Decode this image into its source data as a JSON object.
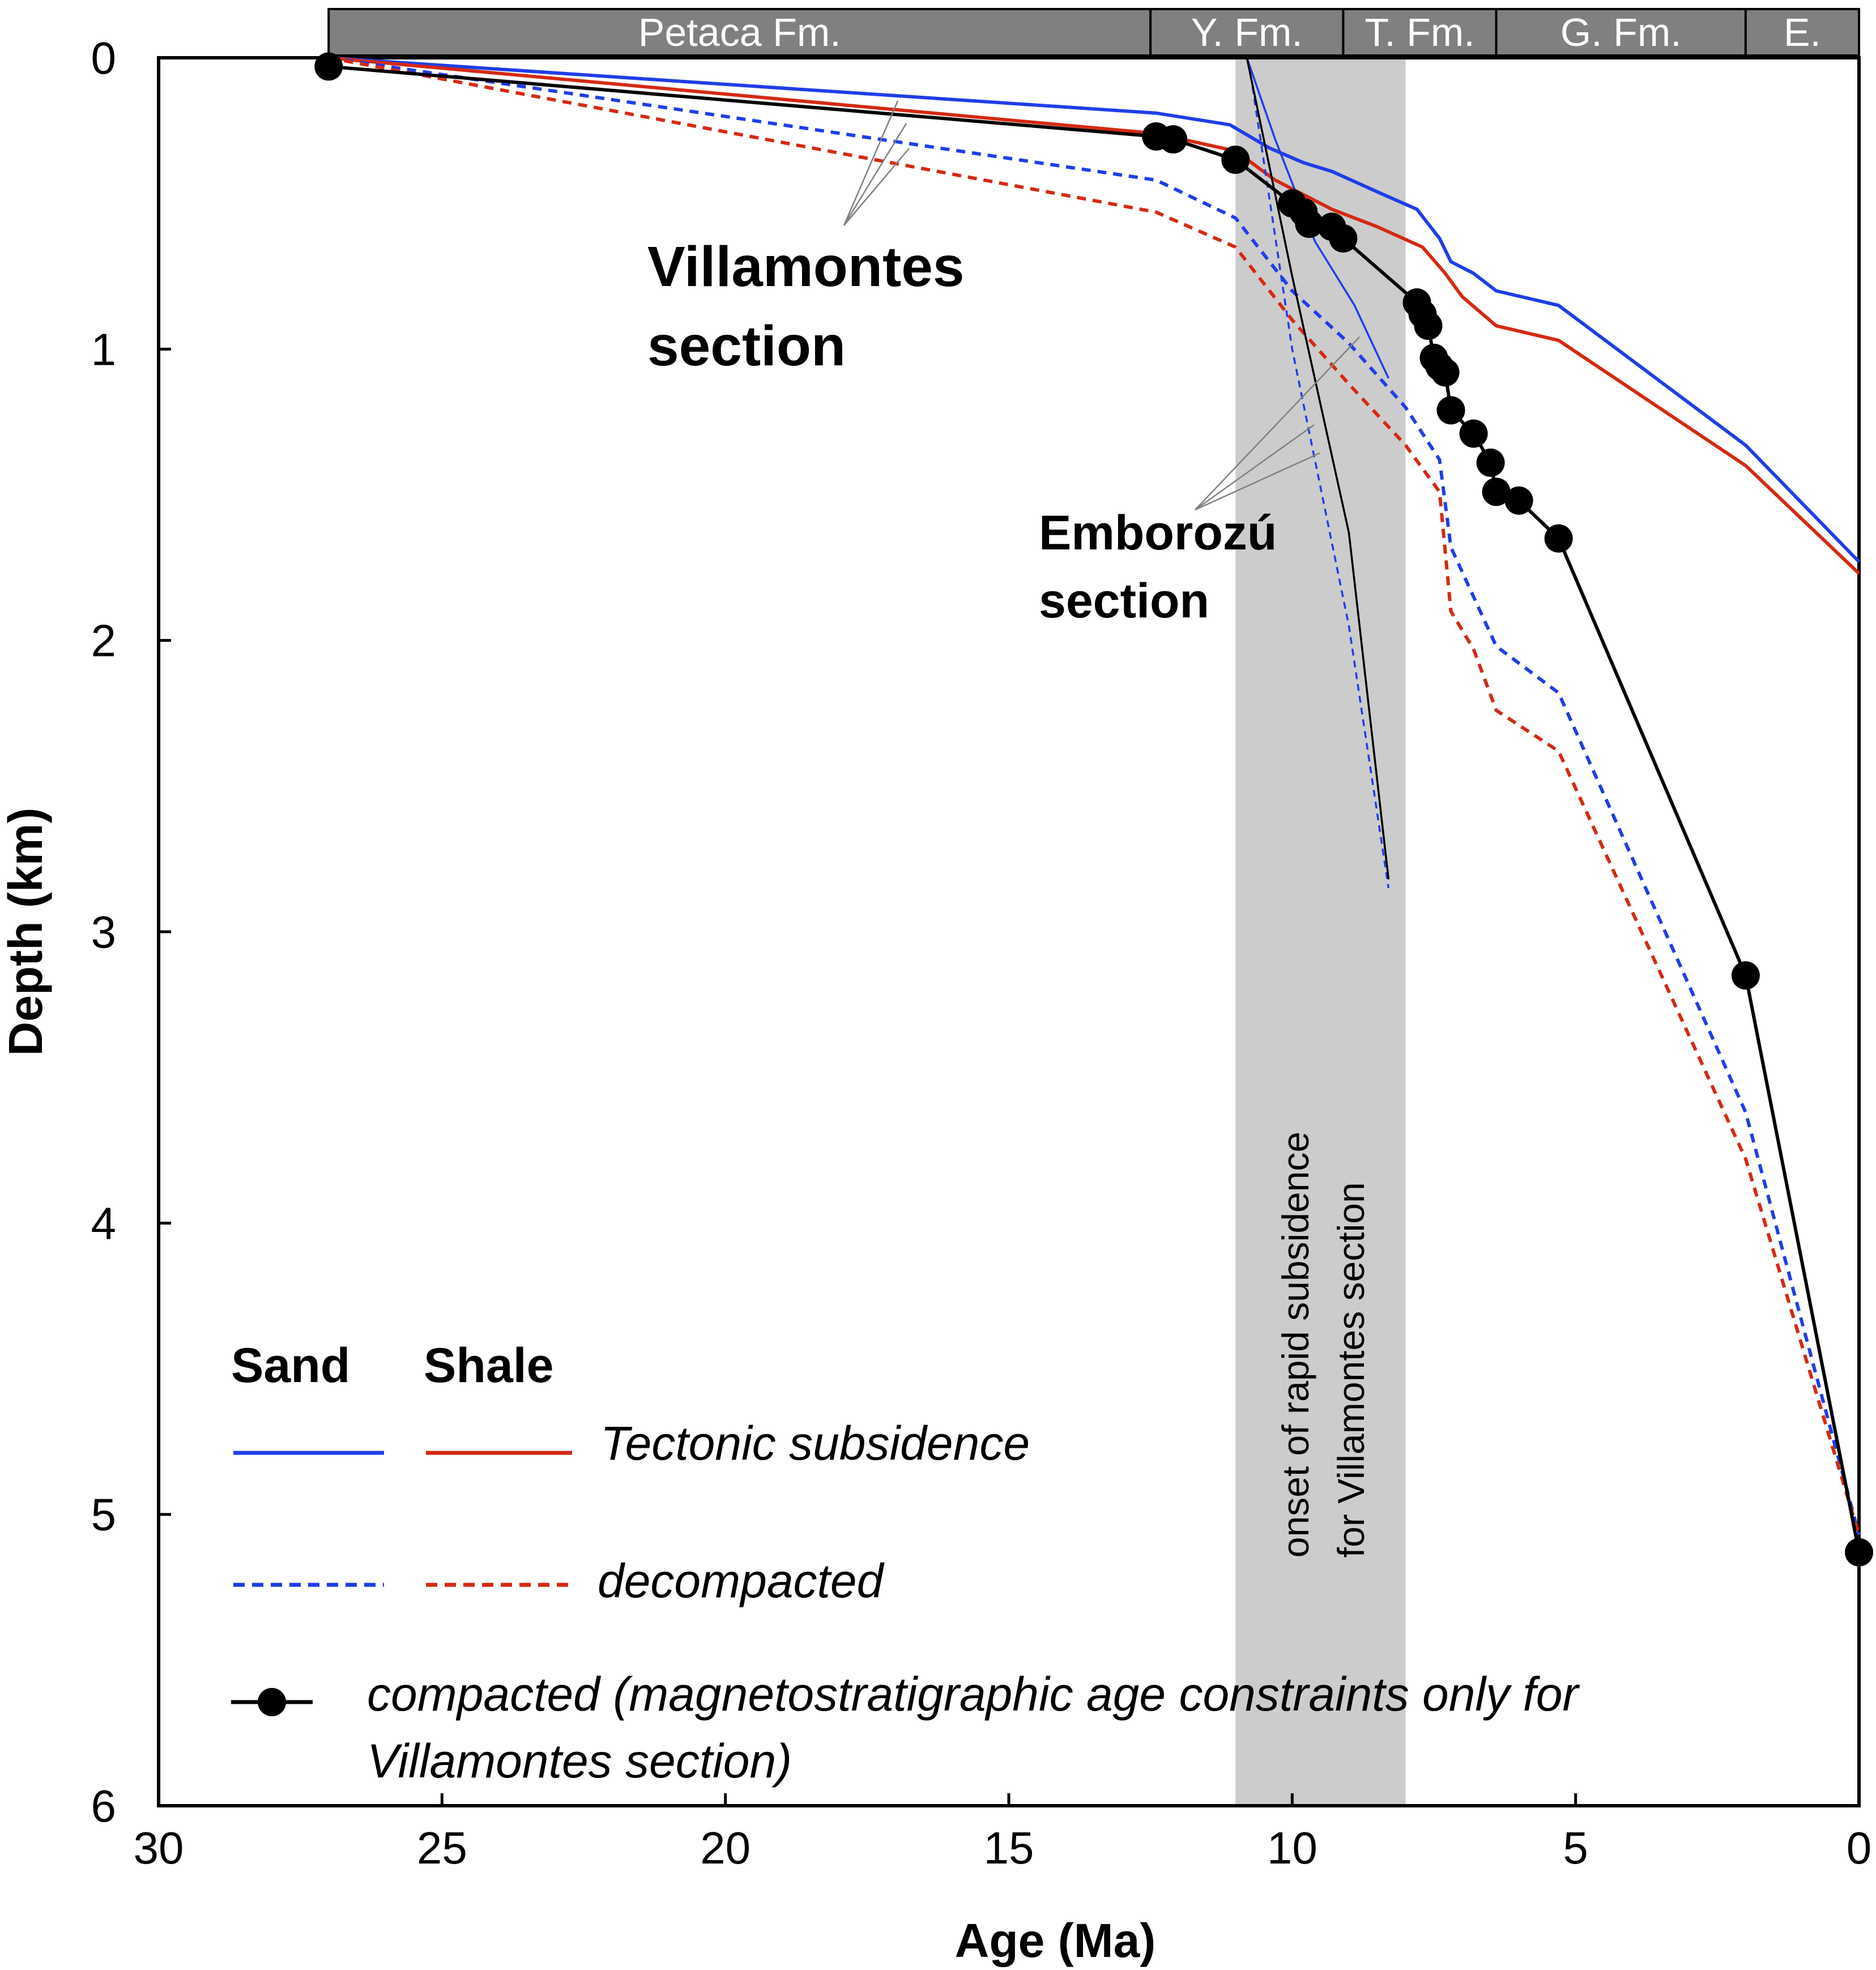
{
  "chart_data": {
    "type": "line",
    "xlabel": "Age (Ma)",
    "ylabel": "Depth (km)",
    "xlim": [
      30,
      0
    ],
    "ylim": [
      0,
      6
    ],
    "xticks": [
      "30",
      "25",
      "20",
      "15",
      "10",
      "5",
      "0"
    ],
    "yticks": [
      "0",
      "1",
      "2",
      "3",
      "4",
      "5",
      "6"
    ],
    "formations": [
      {
        "label": "Petaca Fm.",
        "from": 27.0,
        "to": 12.5
      },
      {
        "label": "Y. Fm.",
        "from": 12.5,
        "to": 9.1
      },
      {
        "label": "T. Fm.",
        "from": 9.1,
        "to": 6.4
      },
      {
        "label": "G. Fm.",
        "from": 6.4,
        "to": 2.0
      },
      {
        "label": "E.",
        "from": 2.0,
        "to": 0.0
      }
    ],
    "shaded_band": {
      "from": 11.0,
      "to": 8.0,
      "label_line1": "onset of rapid subsidence",
      "label_line2": "for Villamontes section"
    },
    "annotations": {
      "villamontes_line1": "Villamontes",
      "villamontes_line2": "section",
      "emborozu_line1": "Emborozú",
      "emborozu_line2": "section"
    },
    "series": [
      {
        "name": "Villamontes tectonic subsidence (sand)",
        "color": "#1f3ee8",
        "style": "solid",
        "x": [
          27.0,
          12.4,
          11.1,
          10.4,
          9.8,
          9.3,
          8.5,
          7.8,
          7.4,
          7.2,
          6.8,
          6.4,
          5.3,
          2.0,
          0.0
        ],
        "y": [
          0.0,
          0.19,
          0.23,
          0.31,
          0.36,
          0.39,
          0.46,
          0.52,
          0.62,
          0.7,
          0.74,
          0.8,
          0.85,
          1.33,
          1.73
        ]
      },
      {
        "name": "Villamontes tectonic subsidence (shale)",
        "color": "#d42a14",
        "style": "solid",
        "x": [
          27.0,
          12.4,
          11.0,
          10.3,
          9.3,
          8.5,
          7.7,
          7.3,
          7.0,
          6.4,
          5.3,
          2.0,
          0.0
        ],
        "y": [
          0.0,
          0.26,
          0.32,
          0.42,
          0.52,
          0.58,
          0.65,
          0.74,
          0.82,
          0.92,
          0.97,
          1.4,
          1.77
        ]
      },
      {
        "name": "Villamontes decompacted (sand)",
        "color": "#1f3ee8",
        "style": "dashed",
        "x": [
          27.0,
          12.4,
          11.0,
          10.0,
          9.0,
          8.0,
          7.4,
          7.2,
          6.8,
          6.4,
          5.3,
          2.0,
          0.0
        ],
        "y": [
          0.0,
          0.42,
          0.55,
          0.8,
          0.98,
          1.2,
          1.38,
          1.68,
          1.85,
          2.02,
          2.18,
          3.62,
          5.07
        ]
      },
      {
        "name": "Villamontes decompacted (shale)",
        "color": "#d42a14",
        "style": "dashed",
        "x": [
          27.0,
          12.4,
          11.0,
          10.0,
          9.0,
          8.0,
          7.4,
          7.2,
          6.8,
          6.4,
          5.3,
          2.0,
          0.0
        ],
        "y": [
          0.0,
          0.53,
          0.65,
          0.9,
          1.12,
          1.33,
          1.49,
          1.9,
          2.03,
          2.24,
          2.38,
          3.78,
          5.07
        ]
      },
      {
        "name": "Emborozú tectonic subsidence (sand)",
        "color": "#1f3ee8",
        "style": "solid-thin",
        "x": [
          10.8,
          10.3,
          9.6,
          8.9,
          8.3
        ],
        "y": [
          0.0,
          0.28,
          0.63,
          0.85,
          1.1
        ]
      },
      {
        "name": "Emborozú decompacted (sand)",
        "color": "#1f3ee8",
        "style": "dashed-thin",
        "x": [
          10.7,
          10.0,
          9.0,
          8.3
        ],
        "y": [
          0.1,
          1.0,
          1.95,
          2.85
        ]
      },
      {
        "name": "Emborozú compacted",
        "color": "#000000",
        "style": "solid-thin",
        "x": [
          10.8,
          10.0,
          9.0,
          8.3
        ],
        "y": [
          0.0,
          0.75,
          1.63,
          2.82
        ]
      },
      {
        "name": "Villamontes compacted",
        "color": "#000000",
        "style": "markers",
        "x": [
          27.0,
          12.4,
          12.1,
          11.0,
          10.0,
          9.8,
          9.7,
          9.3,
          9.1,
          7.8,
          7.7,
          7.6,
          7.5,
          7.4,
          7.3,
          7.2,
          6.8,
          6.5,
          6.4,
          6.0,
          5.3,
          2.0,
          0.0
        ],
        "y": [
          0.03,
          0.27,
          0.28,
          0.35,
          0.5,
          0.53,
          0.57,
          0.58,
          0.62,
          0.84,
          0.88,
          0.92,
          1.03,
          1.06,
          1.08,
          1.21,
          1.29,
          1.39,
          1.49,
          1.52,
          1.65,
          3.15,
          5.13
        ]
      }
    ],
    "legend": {
      "placement": "bottom-left",
      "sand_header": "Sand",
      "shale_header": "Shale",
      "row1_label": "Tectonic subsidence",
      "row2_label": "decompacted",
      "row3_label_line1": "compacted (magnetostratigraphic age constraints only for",
      "row3_label_line2": "Villamontes section)"
    }
  }
}
